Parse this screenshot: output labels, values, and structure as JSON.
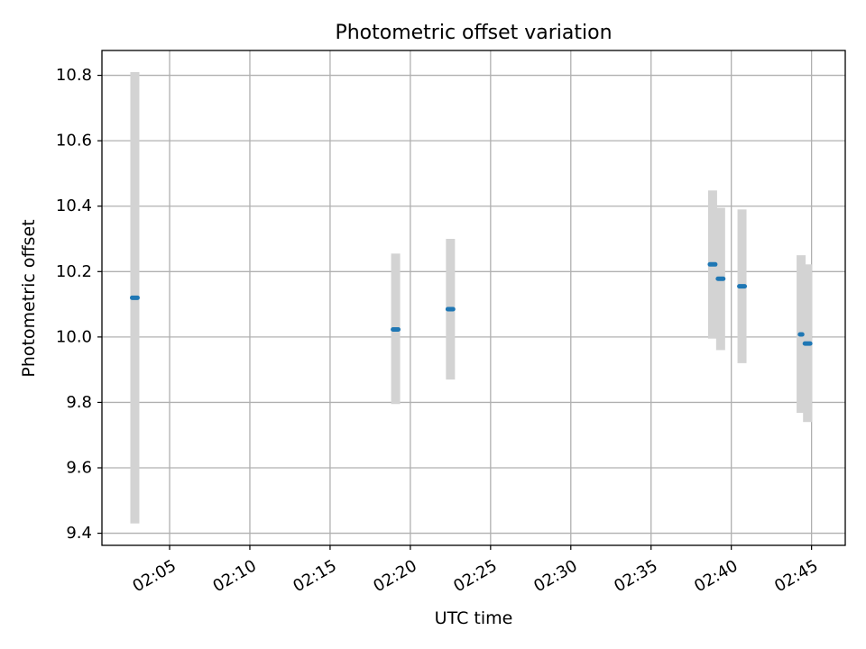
{
  "chart_data": {
    "type": "scatter",
    "title": "Photometric offset variation",
    "xlabel": "UTC time",
    "ylabel": "Photometric offset",
    "xlim": [
      "02:00:47",
      "02:47:06"
    ],
    "ylim": [
      9.363,
      10.876
    ],
    "x_ticks": [
      "02:05",
      "02:10",
      "02:15",
      "02:20",
      "02:25",
      "02:30",
      "02:35",
      "02:40",
      "02:45"
    ],
    "y_ticks": [
      "9.4",
      "9.6",
      "9.8",
      "10.0",
      "10.2",
      "10.4",
      "10.6",
      "10.8"
    ],
    "grid": true,
    "colors": {
      "point": "#1f77b4",
      "errorbar": "#d3d3d3",
      "grid": "#b0b0b0",
      "axes": "#000000"
    },
    "points": [
      {
        "start": "02:02:40",
        "end": "02:03:00",
        "y": 10.12,
        "ymin": 9.43,
        "ymax": 10.81
      },
      {
        "start": "02:18:55",
        "end": "02:19:15",
        "y": 10.023,
        "ymin": 9.795,
        "ymax": 10.255
      },
      {
        "start": "02:22:20",
        "end": "02:22:40",
        "y": 10.085,
        "ymin": 9.87,
        "ymax": 10.3
      },
      {
        "start": "02:38:40",
        "end": "02:39:00",
        "y": 10.222,
        "ymin": 9.995,
        "ymax": 10.448
      },
      {
        "start": "02:39:10",
        "end": "02:39:30",
        "y": 10.178,
        "ymin": 9.96,
        "ymax": 10.395
      },
      {
        "start": "02:40:30",
        "end": "02:40:50",
        "y": 10.155,
        "ymin": 9.92,
        "ymax": 10.39
      },
      {
        "start": "02:44:17",
        "end": "02:44:25",
        "y": 10.008,
        "ymin": 9.768,
        "ymax": 10.25
      },
      {
        "start": "02:44:35",
        "end": "02:44:55",
        "y": 9.98,
        "ymin": 9.74,
        "ymax": 10.222
      }
    ]
  }
}
